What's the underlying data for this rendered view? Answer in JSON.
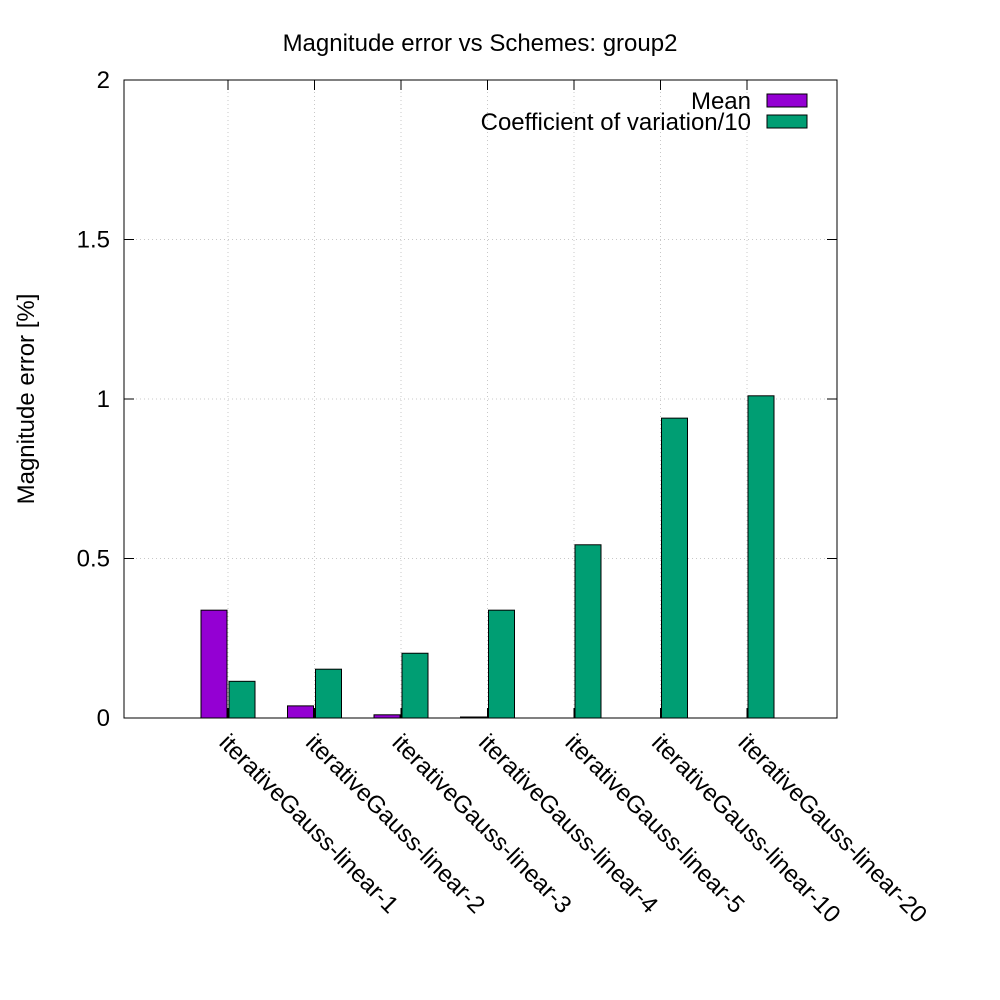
{
  "chart_data": {
    "type": "bar",
    "title": "Magnitude error vs Schemes: group2",
    "xlabel": "",
    "ylabel": "Magnitude error [%]",
    "ylim": [
      0,
      2
    ],
    "yticks": [
      {
        "value": 0,
        "label": "0"
      },
      {
        "value": 0.5,
        "label": "0.5"
      },
      {
        "value": 1,
        "label": "1"
      },
      {
        "value": 1.5,
        "label": "1.5"
      },
      {
        "value": 2,
        "label": "2"
      }
    ],
    "grid": true,
    "legend_position": "top-right",
    "categories": [
      "iterativeGauss-linear-1",
      "iterativeGauss-linear-2",
      "iterativeGauss-linear-3",
      "iterativeGauss-linear-4",
      "iterativeGauss-linear-5",
      "iterativeGauss-linear-10",
      "iterativeGauss-linear-20"
    ],
    "series": [
      {
        "name": "Mean",
        "color": "#9400d3",
        "values": [
          0.338,
          0.038,
          0.01,
          0.003,
          0,
          0,
          0
        ]
      },
      {
        "name": "Coefficient of variation/10",
        "color": "#009e73",
        "values": [
          0.115,
          0.153,
          0.203,
          0.338,
          0.543,
          0.94,
          1.01
        ]
      }
    ]
  }
}
